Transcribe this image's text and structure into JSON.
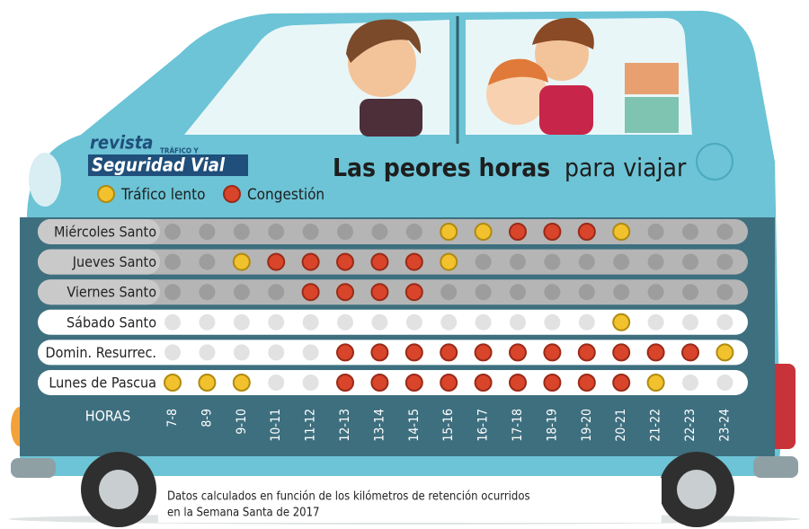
{
  "logo": {
    "line1": "revista",
    "line2": "TRÁFICO Y",
    "line3": "Seguridad Vial"
  },
  "title": {
    "bold": "Las peores horas",
    "light": "para viajar"
  },
  "legend": [
    "Tráfico lento",
    "Congestión"
  ],
  "hours_label": "HORAS",
  "hours": [
    "7-8",
    "8-9",
    "9-10",
    "10-11",
    "11-12",
    "12-13",
    "13-14",
    "14-15",
    "15-16",
    "16-17",
    "17-18",
    "18-19",
    "19-20",
    "20-21",
    "21-22",
    "22-23",
    "23-24"
  ],
  "rows": [
    {
      "label": "Miércoles Santo",
      "cells": [
        null,
        null,
        null,
        null,
        null,
        null,
        null,
        null,
        0,
        0,
        1,
        1,
        1,
        0,
        null,
        null,
        null
      ]
    },
    {
      "label": "Jueves Santo",
      "cells": [
        null,
        null,
        0,
        1,
        1,
        1,
        1,
        1,
        0,
        null,
        null,
        null,
        null,
        null,
        null,
        null,
        null
      ]
    },
    {
      "label": "Viernes Santo",
      "cells": [
        null,
        null,
        null,
        null,
        1,
        1,
        1,
        1,
        null,
        null,
        null,
        null,
        null,
        null,
        null,
        null,
        null
      ]
    },
    {
      "label": "Sábado Santo",
      "cells": [
        null,
        null,
        null,
        null,
        null,
        null,
        null,
        null,
        null,
        null,
        null,
        null,
        null,
        0,
        null,
        null,
        null
      ]
    },
    {
      "label": "Domin. Resurrec.",
      "cells": [
        null,
        null,
        null,
        null,
        null,
        1,
        1,
        1,
        1,
        1,
        1,
        1,
        1,
        1,
        1,
        1,
        0
      ]
    },
    {
      "label": "Lunes de Pascua",
      "cells": [
        0,
        0,
        0,
        null,
        null,
        1,
        1,
        1,
        1,
        1,
        1,
        1,
        1,
        1,
        0,
        null,
        null
      ]
    }
  ],
  "footnote": [
    "Datos calculados en función de los kilómetros de retención ocurridos",
    "en la Semana Santa de 2017"
  ]
}
